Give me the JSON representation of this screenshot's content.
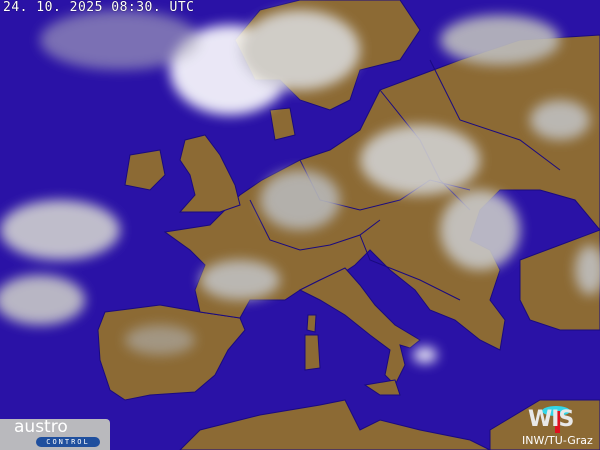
{
  "timestamp": "24. 10. 2025 08:30. UTC",
  "logos": {
    "left": {
      "word": "austro",
      "sub": "CONTROL"
    },
    "right": {
      "word": "WIS"
    }
  },
  "credit": "INW/TU-Graz",
  "colors": {
    "sea": "#2a12a6",
    "land": "#8c6a34",
    "borders": "#1a0a80",
    "cloud": "#e8e8e8"
  }
}
